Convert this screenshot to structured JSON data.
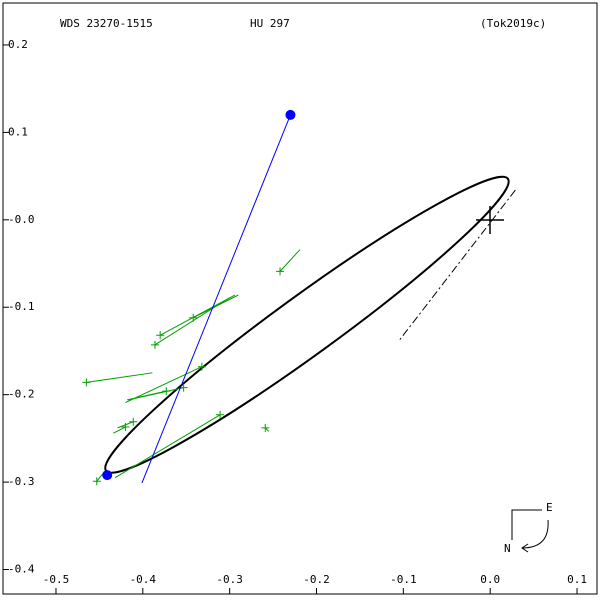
{
  "chart_data": {
    "type": "scatter",
    "title": "WDS 23270-1515",
    "subtitle": "HU  297",
    "reference": "(Tok2019c)",
    "xlim": [
      -0.561,
      0.123
    ],
    "ylim": [
      -0.428,
      0.248
    ],
    "xticks": [
      -0.5,
      -0.4,
      -0.3,
      -0.2,
      -0.1,
      {
        "value": 0,
        "label": "0.0"
      },
      0.1
    ],
    "yticks": [
      0.2,
      0.1,
      {
        "value": 0,
        "label": "-0.0"
      },
      -0.1,
      -0.2,
      -0.3,
      -0.4
    ],
    "orbit": {
      "color": "#000000",
      "center": [
        -0.211,
        -0.12
      ],
      "semi_major": 0.286,
      "semi_minor": 0.034,
      "angle": 36
    },
    "node_line": {
      "x": [
        0.029,
        -0.104
      ],
      "y": [
        0.034,
        -0.137
      ]
    },
    "observations": {
      "color": "#00a000",
      "x": [
        -0.242,
        -0.342,
        -0.38,
        -0.386,
        -0.465,
        -0.332,
        -0.353,
        -0.373,
        -0.411,
        -0.42,
        -0.311,
        -0.259,
        -0.453
      ],
      "y": [
        -0.059,
        -0.112,
        -0.132,
        -0.143,
        -0.186,
        -0.168,
        -0.192,
        -0.196,
        -0.231,
        -0.237,
        -0.223,
        -0.238,
        -0.299
      ],
      "orbit_x": [
        -0.219,
        -0.29,
        -0.294,
        -0.3,
        -0.389,
        -0.42,
        -0.417,
        -0.418,
        -0.429,
        -0.434,
        -0.432,
        -0.255,
        -0.444
      ],
      "orbit_y": [
        -0.034,
        -0.086,
        -0.086,
        -0.089,
        -0.175,
        -0.209,
        -0.206,
        -0.206,
        -0.238,
        -0.244,
        -0.295,
        -0.242,
        -0.288
      ]
    },
    "highlight": {
      "color": "#0000ff",
      "x": [
        -0.23,
        -0.441
      ],
      "y": [
        0.12,
        -0.292
      ]
    },
    "highlight_line": {
      "x": [
        -0.23,
        -0.401
      ],
      "y": [
        0.12,
        -0.301
      ]
    },
    "compass": {
      "east": "E",
      "north": "N"
    }
  }
}
